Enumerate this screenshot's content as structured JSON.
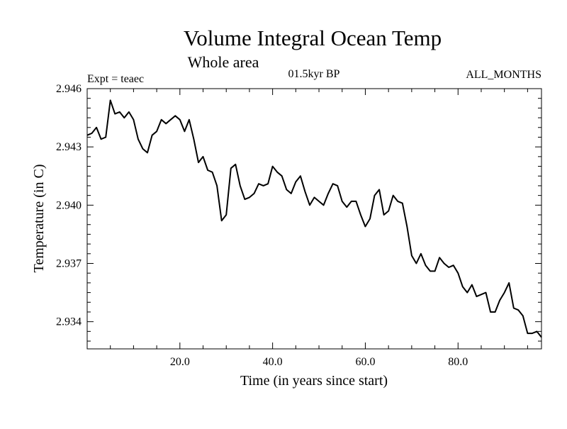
{
  "header": {
    "title": "Volume Integral Ocean Temp",
    "subtitle": "Whole area",
    "experiment": "Expt = teaec",
    "period": "01.5kyr BP",
    "months": "ALL_MONTHS"
  },
  "chart_data": {
    "type": "line",
    "title": "Volume Integral Ocean Temp",
    "subtitle": "Whole area",
    "xlabel": "Time (in years since start)",
    "ylabel": "Temperature (in C)",
    "xlim": [
      0,
      98
    ],
    "ylim": [
      2.9326,
      2.946
    ],
    "x_ticks": [
      20,
      40,
      60,
      80
    ],
    "x_tick_labels": [
      "20.0",
      "40.0",
      "60.0",
      "80.0"
    ],
    "y_ticks": [
      2.934,
      2.937,
      2.94,
      2.943,
      2.946
    ],
    "y_tick_labels": [
      "2.934",
      "2.937",
      "2.940",
      "2.943",
      "2.946"
    ],
    "grid": false,
    "series": [
      {
        "name": "Volume Integral Ocean Temp",
        "color": "#000000",
        "x": [
          0,
          1,
          2,
          3,
          4,
          5,
          6,
          7,
          8,
          9,
          10,
          11,
          12,
          13,
          14,
          15,
          16,
          17,
          18,
          19,
          20,
          21,
          22,
          23,
          24,
          25,
          26,
          27,
          28,
          29,
          30,
          31,
          32,
          33,
          34,
          35,
          36,
          37,
          38,
          39,
          40,
          41,
          42,
          43,
          44,
          45,
          46,
          47,
          48,
          49,
          50,
          51,
          52,
          53,
          54,
          55,
          56,
          57,
          58,
          59,
          60,
          61,
          62,
          63,
          64,
          65,
          66,
          67,
          68,
          69,
          70,
          71,
          72,
          73,
          74,
          75,
          76,
          77,
          78,
          79,
          80,
          81,
          82,
          83,
          84,
          85,
          86,
          87,
          88,
          89,
          90,
          91,
          92,
          93,
          94,
          95,
          96,
          97,
          98
        ],
        "values": [
          2.9436,
          2.9437,
          2.944,
          2.9434,
          2.9435,
          2.9454,
          2.9447,
          2.9448,
          2.9445,
          2.9448,
          2.9444,
          2.9434,
          2.9429,
          2.9427,
          2.9436,
          2.9438,
          2.9444,
          2.9442,
          2.9444,
          2.9446,
          2.9444,
          2.9438,
          2.9444,
          2.9434,
          2.9422,
          2.9425,
          2.9418,
          2.9417,
          2.941,
          2.9392,
          2.9395,
          2.9419,
          2.9421,
          2.941,
          2.9403,
          2.9404,
          2.9406,
          2.9411,
          2.941,
          2.9411,
          2.942,
          2.9417,
          2.9415,
          2.9408,
          2.9406,
          2.9412,
          2.9415,
          2.9407,
          2.94,
          2.9404,
          2.9402,
          2.94,
          2.9406,
          2.9411,
          2.941,
          2.9402,
          2.9399,
          2.9402,
          2.9402,
          2.9395,
          2.9389,
          2.9393,
          2.9405,
          2.9408,
          2.9395,
          2.9397,
          2.9405,
          2.9402,
          2.9401,
          2.9389,
          2.9374,
          2.937,
          2.9375,
          2.9369,
          2.9366,
          2.9366,
          2.9373,
          2.937,
          2.9368,
          2.9369,
          2.9365,
          2.9358,
          2.9355,
          2.9359,
          2.9353,
          2.9354,
          2.9355,
          2.9345,
          2.9345,
          2.9351,
          2.9355,
          2.936,
          2.9347,
          2.9346,
          2.9343,
          2.9334,
          2.9334,
          2.9335,
          2.9332
        ]
      }
    ]
  }
}
